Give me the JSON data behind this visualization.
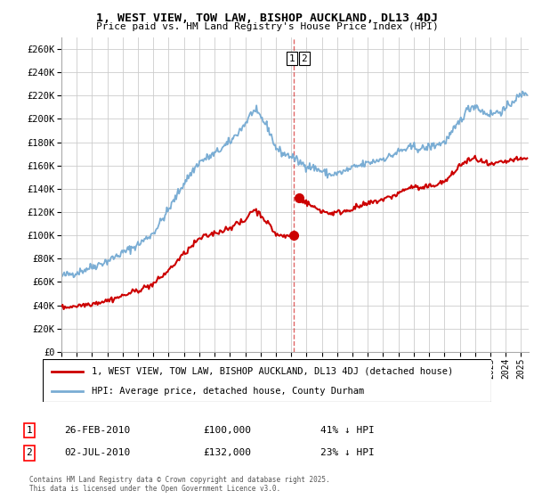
{
  "title": "1, WEST VIEW, TOW LAW, BISHOP AUCKLAND, DL13 4DJ",
  "subtitle": "Price paid vs. HM Land Registry's House Price Index (HPI)",
  "background_color": "#ffffff",
  "grid_color": "#cccccc",
  "hpi_color": "#7aadd4",
  "property_color": "#cc0000",
  "ylim": [
    0,
    270000
  ],
  "yticks": [
    0,
    20000,
    40000,
    60000,
    80000,
    100000,
    120000,
    140000,
    160000,
    180000,
    200000,
    220000,
    240000,
    260000
  ],
  "transaction1": {
    "date_label": "26-FEB-2010",
    "price": 100000,
    "hpi_pct": "41% ↓ HPI",
    "year": 2010.15
  },
  "transaction2": {
    "date_label": "02-JUL-2010",
    "price": 132000,
    "hpi_pct": "23% ↓ HPI",
    "year": 2010.5
  },
  "legend_property": "1, WEST VIEW, TOW LAW, BISHOP AUCKLAND, DL13 4DJ (detached house)",
  "legend_hpi": "HPI: Average price, detached house, County Durham",
  "footnote": "Contains HM Land Registry data © Crown copyright and database right 2025.\nThis data is licensed under the Open Government Licence v3.0.",
  "xmin": 1995.0,
  "xmax": 2025.5
}
